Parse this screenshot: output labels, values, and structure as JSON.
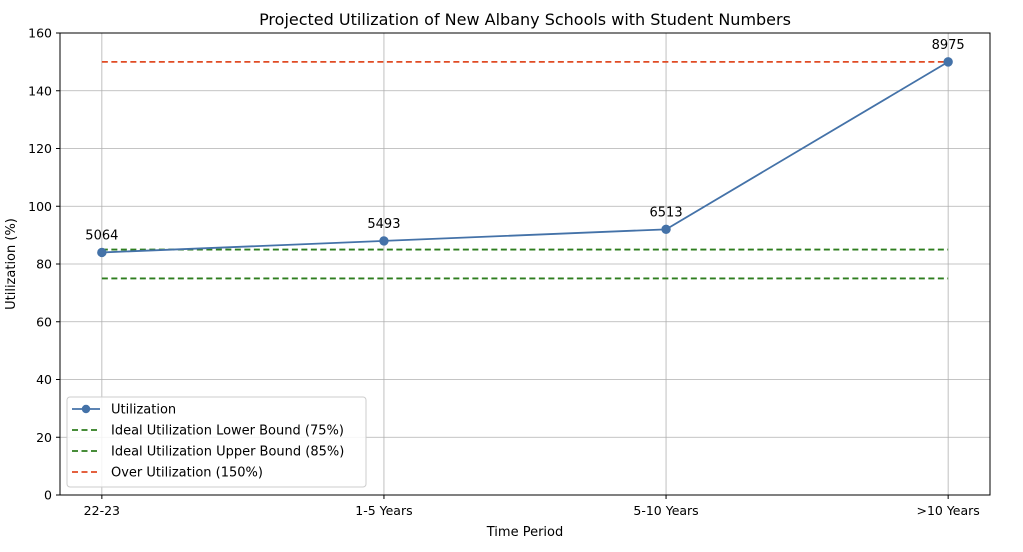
{
  "chart_data": {
    "type": "line",
    "title": "Projected Utilization of New Albany Schools with Student Numbers",
    "xlabel": "Time Period",
    "ylabel": "Utilization (%)",
    "categories": [
      "22-23",
      "1-5 Years",
      "5-10 Years",
      ">10 Years"
    ],
    "ylim": [
      0,
      160
    ],
    "yticks": [
      0,
      20,
      40,
      60,
      80,
      100,
      120,
      140,
      160
    ],
    "grid": true,
    "legend_position": "lower-left",
    "series": [
      {
        "name": "Utilization",
        "values": [
          84,
          88,
          92,
          150
        ],
        "labels": [
          "5064",
          "5493",
          "6513",
          "8975"
        ],
        "color": "#4472a8",
        "style": "solid",
        "marker": "circle"
      }
    ],
    "reference_lines": [
      {
        "name": "Ideal Utilization Lower Bound (75%)",
        "value": 75,
        "color": "#2e7d1e",
        "style": "dashed"
      },
      {
        "name": "Ideal Utilization Upper Bound (85%)",
        "value": 85,
        "color": "#2e7d1e",
        "style": "dashed"
      },
      {
        "name": "Over Utilization (150%)",
        "value": 150,
        "color": "#e04b24",
        "style": "dashed"
      }
    ]
  }
}
